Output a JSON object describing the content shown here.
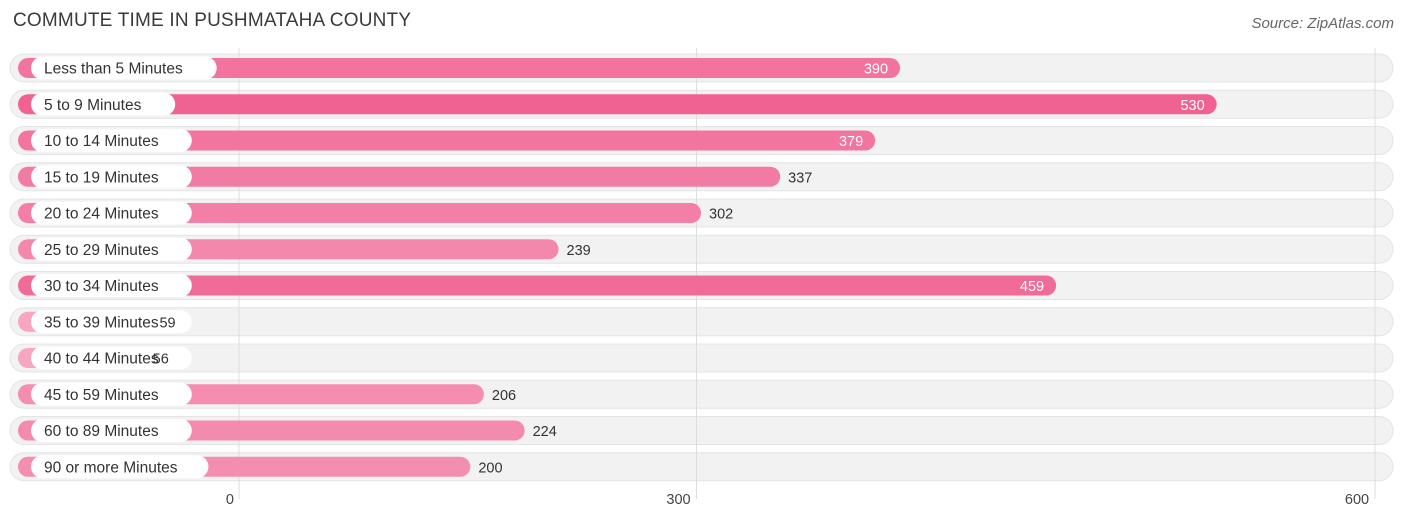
{
  "title": "COMMUTE TIME IN PUSHMATAHA COUNTY",
  "source": "Source: ZipAtlas.com",
  "chart_data": {
    "type": "bar",
    "orientation": "horizontal",
    "title": "COMMUTE TIME IN PUSHMATAHA COUNTY",
    "xlabel": "",
    "ylabel": "",
    "xlim": [
      0,
      600
    ],
    "ticks": [
      0,
      300,
      600
    ],
    "grid": true,
    "categories": [
      "Less than 5 Minutes",
      "5 to 9 Minutes",
      "10 to 14 Minutes",
      "15 to 19 Minutes",
      "20 to 24 Minutes",
      "25 to 29 Minutes",
      "30 to 34 Minutes",
      "35 to 39 Minutes",
      "40 to 44 Minutes",
      "45 to 59 Minutes",
      "60 to 89 Minutes",
      "90 or more Minutes"
    ],
    "values": [
      390,
      530,
      379,
      337,
      302,
      239,
      459,
      59,
      56,
      206,
      224,
      200
    ],
    "colors": {
      "high": "#f06292",
      "low": "#f8b3ca",
      "track": "#f2f2f2",
      "grid": "#dddddd",
      "label_inside": "#ffffff",
      "label_outside": "#333333"
    }
  }
}
